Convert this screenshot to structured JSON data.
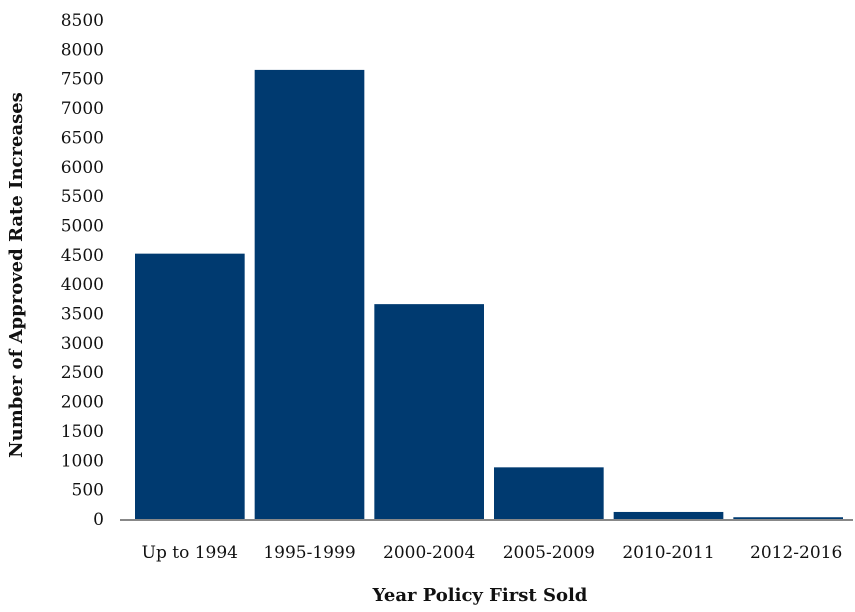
{
  "chart_data": {
    "type": "bar",
    "title": "",
    "xlabel": "Year Policy First Sold",
    "ylabel": "Number of Approved Rate Increases",
    "categories": [
      "Up to 1994",
      "1995-1999",
      "2000-2004",
      "2005-2009",
      "2010-2011",
      "2012-2016"
    ],
    "values": [
      4520,
      7650,
      3660,
      880,
      120,
      30
    ],
    "ylim": [
      0,
      8500
    ],
    "yticks": [
      0,
      500,
      1000,
      1500,
      2000,
      2500,
      3000,
      3500,
      4000,
      4500,
      5000,
      5500,
      6000,
      6500,
      7000,
      7500,
      8000,
      8500
    ],
    "bar_color": "#003a70",
    "axis_color": "#888888",
    "grid": false,
    "legend": "none"
  }
}
